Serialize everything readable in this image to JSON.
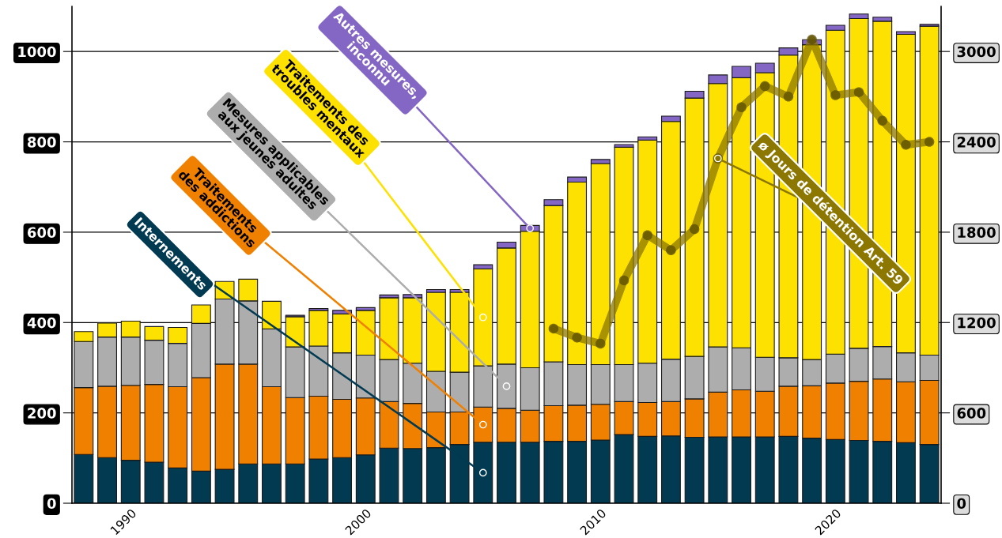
{
  "chart_data": {
    "type": "bar",
    "stacked": true,
    "x": [
      1988,
      1989,
      1990,
      1991,
      1992,
      1993,
      1994,
      1995,
      1996,
      1997,
      1998,
      1999,
      2000,
      2001,
      2002,
      2003,
      2004,
      2005,
      2006,
      2007,
      2008,
      2009,
      2010,
      2011,
      2012,
      2013,
      2014,
      2015,
      2016,
      2017,
      2018,
      2019,
      2020,
      2021,
      2022,
      2023,
      2024
    ],
    "xlim": [
      1987.5,
      2024.5
    ],
    "xticks": [
      1990,
      2000,
      2010,
      2020
    ],
    "ylim": [
      0,
      1100
    ],
    "yticks": [
      0,
      200,
      400,
      600,
      800,
      1000
    ],
    "y2lim": [
      0,
      3300
    ],
    "y2ticks": [
      0,
      600,
      1200,
      1800,
      2400,
      3000
    ],
    "grid": "y",
    "legend": false,
    "series": [
      {
        "name": "Internements",
        "color": "#023a51",
        "values": [
          108,
          101,
          95,
          91,
          78,
          71,
          75,
          87,
          87,
          87,
          98,
          101,
          107,
          122,
          121,
          123,
          130,
          135,
          135,
          135,
          137,
          137,
          140,
          152,
          148,
          149,
          146,
          147,
          147,
          147,
          148,
          144,
          141,
          139,
          137,
          134,
          130
        ]
      },
      {
        "name": "Traitements\ndes addictions",
        "color": "#f08000",
        "values": [
          148,
          158,
          166,
          172,
          180,
          207,
          233,
          221,
          171,
          147,
          139,
          129,
          126,
          103,
          100,
          79,
          72,
          78,
          75,
          71,
          79,
          80,
          79,
          73,
          75,
          76,
          85,
          99,
          104,
          101,
          111,
          116,
          125,
          131,
          138,
          135,
          142
        ]
      },
      {
        "name": "Mesures applicables\naux jeunes adultes",
        "color": "#adadad",
        "values": [
          102,
          109,
          107,
          98,
          96,
          120,
          144,
          140,
          128,
          112,
          111,
          103,
          95,
          93,
          89,
          90,
          88,
          91,
          98,
          94,
          97,
          90,
          88,
          82,
          87,
          94,
          94,
          100,
          93,
          75,
          63,
          58,
          64,
          73,
          72,
          64,
          56
        ]
      },
      {
        "name": "Traitements des\ntroubles mentaux",
        "color": "#fde100",
        "values": [
          22,
          31,
          35,
          30,
          35,
          41,
          39,
          48,
          61,
          67,
          79,
          86,
          99,
          137,
          145,
          175,
          177,
          215,
          257,
          302,
          346,
          404,
          445,
          481,
          494,
          526,
          572,
          583,
          598,
          630,
          670,
          697,
          717,
          730,
          720,
          705,
          728
        ]
      },
      {
        "name": "Autres mesures,\ninconnu",
        "color": "#8467c4",
        "values": [
          null,
          null,
          null,
          null,
          null,
          null,
          null,
          null,
          null,
          3,
          4,
          8,
          6,
          6,
          7,
          6,
          6,
          9,
          13,
          13,
          13,
          11,
          9,
          6,
          7,
          12,
          15,
          19,
          25,
          21,
          16,
          11,
          11,
          10,
          9,
          6,
          4
        ]
      },
      {
        "name": "ø Jours de détention Art. 59",
        "type": "line",
        "axis": "y2",
        "color": "#8c7700",
        "marker": "circle",
        "line_style": "solid",
        "x": [
          2008,
          2009,
          2010,
          2011,
          2012,
          2013,
          2014,
          2015,
          2016,
          2017,
          2018,
          2019,
          2020,
          2021,
          2022,
          2023,
          2024
        ],
        "values": [
          1160,
          1100,
          1060,
          1480,
          1780,
          1680,
          1820,
          2290,
          2630,
          2770,
          2700,
          3080,
          2710,
          2730,
          2540,
          2380,
          2400
        ]
      }
    ]
  }
}
